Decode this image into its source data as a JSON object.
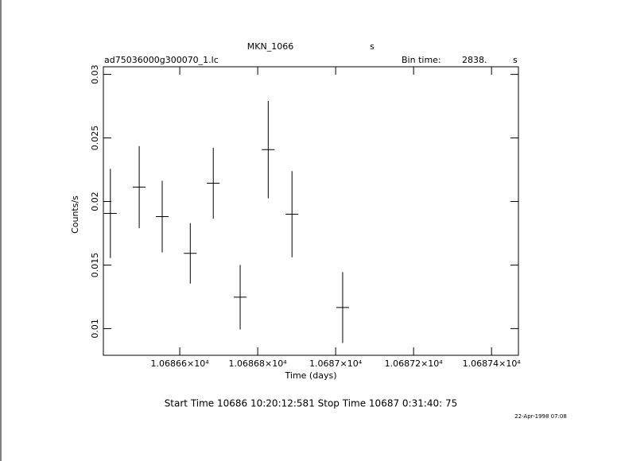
{
  "chart_data": {
    "type": "errorbar",
    "title": "MKN_1066",
    "title_unit": "s",
    "file_name": "ad75036000g300070_1.lc",
    "bin_time_label": "Bin time:",
    "bin_time": "2838.",
    "bin_time_unit": "s",
    "x_label": "Time (days)",
    "y_label": "Counts/s",
    "footer": "Start Time 10686 10:20:12:581    Stop Time 10687  0:31:40: 75",
    "date_stamp": "22-Apr-1998 07:08",
    "xlim": [
      10686.404,
      10687.469
    ],
    "ylim": [
      0.0079,
      0.0306
    ],
    "xticks": [
      {
        "value": 10686.6,
        "label": "1.06866×10⁴"
      },
      {
        "value": 10686.8,
        "label": "1.06868×10⁴"
      },
      {
        "value": 10687.0,
        "label": "1.0687×10⁴"
      },
      {
        "value": 10687.2,
        "label": "1.06872×10⁴"
      },
      {
        "value": 10687.4,
        "label": "1.06874×10⁴"
      }
    ],
    "yticks": [
      0.01,
      0.015,
      0.02,
      0.025,
      0.03
    ],
    "color": "#000000",
    "x": [
      10686.422,
      10686.496,
      10686.555,
      10686.627,
      10686.686,
      10686.755,
      10686.827,
      10686.888,
      10687.018
    ],
    "x_errors": [
      0.0164,
      0.0164,
      0.0164,
      0.0164,
      0.0164,
      0.0164,
      0.0164,
      0.0164,
      0.0164
    ],
    "values": [
      0.01906,
      0.02113,
      0.01881,
      0.01592,
      0.02144,
      0.01247,
      0.02408,
      0.019,
      0.01166
    ],
    "errors": [
      0.00351,
      0.00323,
      0.00282,
      0.00238,
      0.00279,
      0.00254,
      0.00383,
      0.00339,
      0.00279
    ]
  }
}
